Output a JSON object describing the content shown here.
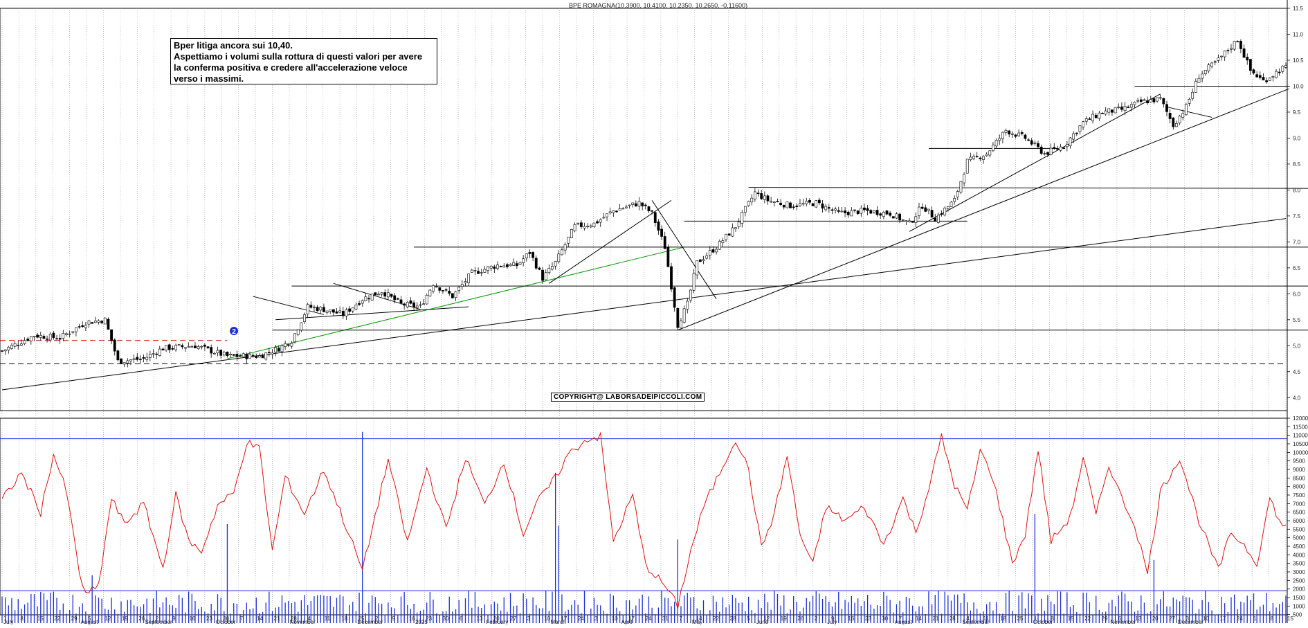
{
  "chart_data": [
    {
      "type": "candlestick",
      "title": "BPE ROMAGNA(10,3900, 10,4100, 10,2350, 10,2650, -0,11600)",
      "ylim": [
        3.75,
        11.5
      ],
      "y_ticks": [
        "4.0",
        "4.5",
        "5.0",
        "5.5",
        "6.0",
        "6.5",
        "7.0",
        "7.5",
        "8.0",
        "8.5",
        "9.0",
        "9.5",
        "10.0",
        "10.5",
        "11.0",
        "11.5"
      ],
      "annotation": [
        "Bper litiga ancora sui 10,40.",
        "Aspettiamo i volumi sulla rottura di questi valori per avere",
        "la conferma positiva e credere all'accelerazione veloce",
        "verso i massimi."
      ],
      "copyright": "COPYRIGHT@ LABORSADEIPICCOLI.COM",
      "marker_label": "2",
      "price_path": [
        [
          0,
          4.9
        ],
        [
          10,
          5.2
        ],
        [
          18,
          5.15
        ],
        [
          26,
          5.45
        ],
        [
          32,
          5.5
        ],
        [
          36,
          4.7
        ],
        [
          44,
          4.75
        ],
        [
          50,
          4.95
        ],
        [
          60,
          5.0
        ],
        [
          70,
          4.8
        ],
        [
          80,
          4.8
        ],
        [
          86,
          4.95
        ],
        [
          90,
          5.1
        ],
        [
          95,
          5.75
        ],
        [
          100,
          5.7
        ],
        [
          106,
          5.6
        ],
        [
          112,
          5.9
        ],
        [
          118,
          6.05
        ],
        [
          124,
          5.8
        ],
        [
          130,
          5.75
        ],
        [
          134,
          6.2
        ],
        [
          140,
          5.95
        ],
        [
          146,
          6.4
        ],
        [
          154,
          6.55
        ],
        [
          160,
          6.55
        ],
        [
          164,
          6.8
        ],
        [
          168,
          6.3
        ],
        [
          172,
          6.6
        ],
        [
          178,
          7.3
        ],
        [
          184,
          7.35
        ],
        [
          190,
          7.6
        ],
        [
          198,
          7.75
        ],
        [
          202,
          7.55
        ],
        [
          206,
          6.9
        ],
        [
          210,
          5.4
        ],
        [
          213,
          5.8
        ],
        [
          216,
          6.6
        ],
        [
          222,
          6.9
        ],
        [
          228,
          7.3
        ],
        [
          234,
          7.95
        ],
        [
          238,
          7.8
        ],
        [
          245,
          7.7
        ],
        [
          253,
          7.75
        ],
        [
          260,
          7.55
        ],
        [
          268,
          7.6
        ],
        [
          276,
          7.55
        ],
        [
          282,
          7.35
        ],
        [
          286,
          7.7
        ],
        [
          290,
          7.45
        ],
        [
          296,
          7.8
        ],
        [
          300,
          8.55
        ],
        [
          306,
          8.7
        ],
        [
          312,
          9.15
        ],
        [
          318,
          9.0
        ],
        [
          324,
          8.7
        ],
        [
          330,
          8.85
        ],
        [
          336,
          9.3
        ],
        [
          342,
          9.5
        ],
        [
          348,
          9.55
        ],
        [
          354,
          9.7
        ],
        [
          360,
          9.75
        ],
        [
          364,
          9.25
        ],
        [
          368,
          9.6
        ],
        [
          372,
          10.2
        ],
        [
          378,
          10.5
        ],
        [
          384,
          10.9
        ],
        [
          388,
          10.3
        ],
        [
          392,
          10.1
        ],
        [
          398,
          10.35
        ]
      ],
      "trend_lines": [
        {
          "from": [
            0,
            4.15
          ],
          "to": [
            399,
            7.45
          ]
        },
        {
          "from": [
            70,
            4.75
          ],
          "to": [
            212,
            6.9
          ],
          "color": "#0a9a0a"
        },
        {
          "from": [
            84,
            5.3
          ],
          "to": [
            408,
            5.3
          ]
        },
        {
          "from": [
            90,
            6.15
          ],
          "to": [
            408,
            6.15
          ]
        },
        {
          "from": [
            128,
            6.9
          ],
          "to": [
            408,
            6.9
          ]
        },
        {
          "from": [
            212,
            7.4
          ],
          "to": [
            300,
            7.4
          ]
        },
        {
          "from": [
            232,
            8.05
          ],
          "to": [
            408,
            8.03
          ]
        },
        {
          "from": [
            288,
            8.8
          ],
          "to": [
            328,
            8.8
          ]
        },
        {
          "from": [
            352,
            10.0
          ],
          "to": [
            400,
            10.0
          ]
        },
        {
          "from": [
            210,
            5.3
          ],
          "to": [
            400,
            9.95
          ]
        },
        {
          "from": [
            282,
            7.2
          ],
          "to": [
            360,
            9.85
          ]
        },
        {
          "from": [
            170,
            6.2
          ],
          "to": [
            208,
            7.8
          ]
        },
        {
          "from": [
            202,
            7.8
          ],
          "to": [
            222,
            5.9
          ]
        },
        {
          "from": [
            78,
            5.95
          ],
          "to": [
            100,
            5.6
          ]
        },
        {
          "from": [
            103,
            6.2
          ],
          "to": [
            130,
            5.7
          ]
        },
        {
          "from": [
            85,
            5.5
          ],
          "to": [
            145,
            5.75
          ]
        },
        {
          "from": [
            362,
            9.6
          ],
          "to": [
            376,
            9.4
          ]
        }
      ],
      "dashed_lines": [
        {
          "y": 4.65,
          "color": "#000000"
        },
        {
          "y": 5.1,
          "color": "#cc0000",
          "to": 70
        }
      ]
    },
    {
      "type": "bar",
      "title": "",
      "ylim": [
        0,
        12000
      ],
      "y_ticks": [
        "500",
        "1000",
        "1500",
        "2000",
        "2500",
        "3000",
        "3500",
        "4000",
        "4500",
        "5000",
        "5500",
        "6000",
        "6500",
        "7000",
        "7500",
        "8000",
        "8500",
        "9000",
        "9500",
        "10000",
        "10500",
        "11000",
        "11500",
        "12000"
      ],
      "reference_lines": [
        10800,
        1900
      ],
      "volume_spikes": [
        [
          28,
          2800
        ],
        [
          70,
          5800
        ],
        [
          112,
          11200
        ],
        [
          172,
          8800
        ],
        [
          173,
          5700
        ],
        [
          210,
          4900
        ],
        [
          321,
          6400
        ],
        [
          358,
          3700
        ]
      ],
      "oscillator_path": [
        [
          0,
          7200
        ],
        [
          6,
          8800
        ],
        [
          12,
          6500
        ],
        [
          16,
          9900
        ],
        [
          20,
          7700
        ],
        [
          24,
          3000
        ],
        [
          26,
          1600
        ],
        [
          30,
          2200
        ],
        [
          34,
          7300
        ],
        [
          38,
          5800
        ],
        [
          44,
          7000
        ],
        [
          50,
          3200
        ],
        [
          54,
          7500
        ],
        [
          58,
          4800
        ],
        [
          62,
          4200
        ],
        [
          67,
          6900
        ],
        [
          72,
          7600
        ],
        [
          76,
          10600
        ],
        [
          80,
          10200
        ],
        [
          84,
          4200
        ],
        [
          88,
          8600
        ],
        [
          94,
          6400
        ],
        [
          100,
          9000
        ],
        [
          106,
          6100
        ],
        [
          112,
          3100
        ],
        [
          116,
          6300
        ],
        [
          120,
          9600
        ],
        [
          126,
          4700
        ],
        [
          132,
          9100
        ],
        [
          138,
          5500
        ],
        [
          144,
          9700
        ],
        [
          150,
          6900
        ],
        [
          156,
          9500
        ],
        [
          162,
          5200
        ],
        [
          166,
          7000
        ],
        [
          172,
          8500
        ],
        [
          176,
          9900
        ],
        [
          182,
          10800
        ],
        [
          186,
          10900
        ],
        [
          190,
          4800
        ],
        [
          196,
          7500
        ],
        [
          200,
          3400
        ],
        [
          206,
          2200
        ],
        [
          210,
          1000
        ],
        [
          214,
          4200
        ],
        [
          218,
          6800
        ],
        [
          224,
          9200
        ],
        [
          228,
          10800
        ],
        [
          232,
          9000
        ],
        [
          236,
          4400
        ],
        [
          240,
          6400
        ],
        [
          244,
          9800
        ],
        [
          248,
          5200
        ],
        [
          252,
          3400
        ],
        [
          256,
          6800
        ],
        [
          262,
          6000
        ],
        [
          268,
          6800
        ],
        [
          274,
          4600
        ],
        [
          280,
          7300
        ],
        [
          284,
          5300
        ],
        [
          288,
          7900
        ],
        [
          292,
          10900
        ],
        [
          296,
          8100
        ],
        [
          300,
          6600
        ],
        [
          304,
          10100
        ],
        [
          308,
          8500
        ],
        [
          314,
          3500
        ],
        [
          318,
          5200
        ],
        [
          322,
          10200
        ],
        [
          326,
          4800
        ],
        [
          332,
          6200
        ],
        [
          336,
          9700
        ],
        [
          340,
          6300
        ],
        [
          344,
          9300
        ],
        [
          348,
          7300
        ],
        [
          352,
          5800
        ],
        [
          356,
          2900
        ],
        [
          360,
          7700
        ],
        [
          366,
          9700
        ],
        [
          372,
          6000
        ],
        [
          378,
          3100
        ],
        [
          382,
          5300
        ],
        [
          386,
          4600
        ],
        [
          390,
          3500
        ],
        [
          394,
          7300
        ],
        [
          398,
          5600
        ]
      ]
    }
  ],
  "x_axis": {
    "day_labels": [
      "1",
      "8",
      "15",
      "22",
      "29",
      "5",
      "12",
      "19",
      "26",
      "2",
      "9",
      "16",
      "23",
      "30",
      "7",
      "14",
      "21",
      "28",
      "4",
      "11",
      "18",
      "25",
      "2",
      "9",
      "16",
      "23",
      "30",
      "6",
      "13",
      "20",
      "27",
      "3",
      "10",
      "17",
      "24",
      "3",
      "10",
      "17",
      "24",
      "31",
      "7",
      "14",
      "22",
      "28",
      "5",
      "12",
      "19",
      "26",
      "2",
      "9",
      "16",
      "23",
      "30",
      "7",
      "14",
      "21",
      "28",
      "4",
      "11",
      "18",
      "25",
      "1",
      "8",
      "15",
      "22",
      "29",
      "6",
      "13",
      "20",
      "27",
      "3",
      "10",
      "17",
      "24",
      "1",
      "8",
      "15"
    ],
    "month_labels": [
      "July",
      "August",
      "September",
      "October",
      "November",
      "December",
      "2025",
      "February",
      "March",
      "April",
      "May",
      "June",
      "July",
      "August",
      "September",
      "October",
      "November",
      "December"
    ],
    "month_positions": [
      0,
      24,
      44,
      66,
      89,
      110,
      128,
      150,
      170,
      192,
      214,
      234,
      256,
      277,
      298,
      320,
      344,
      365
    ]
  }
}
